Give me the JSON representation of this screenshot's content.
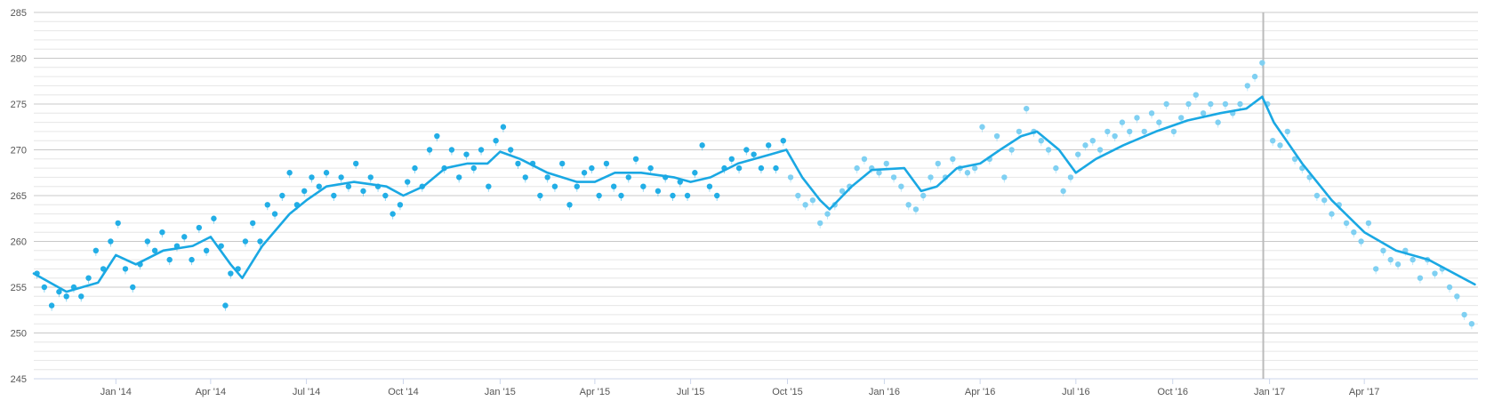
{
  "chart_data": {
    "type": "scatter",
    "title": "",
    "xlabel": "",
    "ylabel": "",
    "ylim": [
      245,
      285
    ],
    "xlim": [
      "2013-10-15",
      "2017-07-18"
    ],
    "yticks": [
      245,
      250,
      255,
      260,
      265,
      270,
      275,
      280,
      285
    ],
    "ytick_labels": [
      "245",
      "250",
      "255",
      "260",
      "265",
      "270",
      "275",
      "280",
      "285"
    ],
    "minor_grid_step": 1,
    "grid": true,
    "legend": "none",
    "xticks": [
      {
        "date": "2014-01-01",
        "label": "Jan '14"
      },
      {
        "date": "2014-04-01",
        "label": "Apr '14"
      },
      {
        "date": "2014-07-01",
        "label": "Jul '14"
      },
      {
        "date": "2014-10-01",
        "label": "Oct '14"
      },
      {
        "date": "2015-01-01",
        "label": "Jan '15"
      },
      {
        "date": "2015-04-01",
        "label": "Apr '15"
      },
      {
        "date": "2015-07-01",
        "label": "Jul '15"
      },
      {
        "date": "2015-10-01",
        "label": "Oct '15"
      },
      {
        "date": "2016-01-01",
        "label": "Jan '16"
      },
      {
        "date": "2016-04-01",
        "label": "Apr '16"
      },
      {
        "date": "2016-07-01",
        "label": "Jul '16"
      },
      {
        "date": "2016-10-01",
        "label": "Oct '16"
      },
      {
        "date": "2017-01-01",
        "label": "Jan '17"
      },
      {
        "date": "2017-04-01",
        "label": "Apr '17"
      }
    ],
    "vertical_marker": {
      "date": "2016-12-26",
      "color": "#bbbbbb"
    },
    "colors": {
      "dark_points": "#22aee6",
      "light_points": "#7fd0f2",
      "trend": "#1aa8e3"
    },
    "series": [
      {
        "type": "scatter",
        "points": [
          [
            "2013-10-18",
            256.5
          ],
          [
            "2013-10-25",
            255
          ],
          [
            "2013-11-01",
            253
          ],
          [
            "2013-11-08",
            254.5
          ],
          [
            "2013-11-15",
            254
          ],
          [
            "2013-11-22",
            255
          ],
          [
            "2013-11-29",
            254
          ],
          [
            "2013-12-06",
            256
          ],
          [
            "2013-12-13",
            259
          ],
          [
            "2013-12-20",
            257
          ],
          [
            "2013-12-27",
            260
          ],
          [
            "2014-01-03",
            262
          ],
          [
            "2014-01-10",
            257
          ],
          [
            "2014-01-17",
            255
          ],
          [
            "2014-01-24",
            257.5
          ],
          [
            "2014-01-31",
            260
          ],
          [
            "2014-02-07",
            259
          ],
          [
            "2014-02-14",
            261
          ],
          [
            "2014-02-21",
            258
          ],
          [
            "2014-02-28",
            259.5
          ],
          [
            "2014-03-07",
            260.5
          ],
          [
            "2014-03-14",
            258
          ],
          [
            "2014-03-21",
            261.5
          ],
          [
            "2014-03-28",
            259
          ],
          [
            "2014-04-04",
            262.5
          ],
          [
            "2014-04-11",
            259.5
          ],
          [
            "2014-04-15",
            253
          ],
          [
            "2014-04-20",
            256.5
          ],
          [
            "2014-04-27",
            257
          ],
          [
            "2014-05-04",
            260
          ],
          [
            "2014-05-11",
            262
          ],
          [
            "2014-05-18",
            260
          ],
          [
            "2014-05-25",
            264
          ],
          [
            "2014-06-01",
            263
          ],
          [
            "2014-06-08",
            265
          ],
          [
            "2014-06-15",
            267.5
          ],
          [
            "2014-06-22",
            264
          ],
          [
            "2014-06-29",
            265.5
          ],
          [
            "2014-07-06",
            267
          ],
          [
            "2014-07-13",
            266
          ],
          [
            "2014-07-20",
            267.5
          ],
          [
            "2014-07-27",
            265
          ],
          [
            "2014-08-03",
            267
          ],
          [
            "2014-08-10",
            266
          ],
          [
            "2014-08-17",
            268.5
          ],
          [
            "2014-08-24",
            265.5
          ],
          [
            "2014-08-31",
            267
          ],
          [
            "2014-09-07",
            266
          ],
          [
            "2014-09-14",
            265
          ],
          [
            "2014-09-21",
            263
          ],
          [
            "2014-09-28",
            264
          ],
          [
            "2014-10-05",
            266.5
          ],
          [
            "2014-10-12",
            268
          ],
          [
            "2014-10-19",
            266
          ],
          [
            "2014-10-26",
            270
          ],
          [
            "2014-11-02",
            271.5
          ],
          [
            "2014-11-09",
            268
          ],
          [
            "2014-11-16",
            270
          ],
          [
            "2014-11-23",
            267
          ],
          [
            "2014-11-30",
            269.5
          ],
          [
            "2014-12-07",
            268
          ],
          [
            "2014-12-14",
            270
          ],
          [
            "2014-12-21",
            266
          ],
          [
            "2014-12-28",
            271
          ],
          [
            "2015-01-04",
            272.5
          ],
          [
            "2015-01-11",
            270
          ],
          [
            "2015-01-18",
            268.5
          ],
          [
            "2015-01-25",
            267
          ],
          [
            "2015-02-01",
            268.5
          ],
          [
            "2015-02-08",
            265
          ],
          [
            "2015-02-15",
            267
          ],
          [
            "2015-02-22",
            266
          ],
          [
            "2015-03-01",
            268.5
          ],
          [
            "2015-03-08",
            264
          ],
          [
            "2015-03-15",
            266
          ],
          [
            "2015-03-22",
            267.5
          ],
          [
            "2015-03-29",
            268
          ],
          [
            "2015-04-05",
            265
          ],
          [
            "2015-04-12",
            268.5
          ],
          [
            "2015-04-19",
            266
          ],
          [
            "2015-04-26",
            265
          ],
          [
            "2015-05-03",
            267
          ],
          [
            "2015-05-10",
            269
          ],
          [
            "2015-05-17",
            266
          ],
          [
            "2015-05-24",
            268
          ],
          [
            "2015-05-31",
            265.5
          ],
          [
            "2015-06-07",
            267
          ],
          [
            "2015-06-14",
            265
          ],
          [
            "2015-06-21",
            266.5
          ],
          [
            "2015-06-28",
            265
          ],
          [
            "2015-07-05",
            267.5
          ],
          [
            "2015-07-12",
            270.5
          ],
          [
            "2015-07-19",
            266
          ],
          [
            "2015-07-26",
            265
          ],
          [
            "2015-08-02",
            268
          ],
          [
            "2015-08-09",
            269
          ],
          [
            "2015-08-16",
            268
          ],
          [
            "2015-08-23",
            270
          ],
          [
            "2015-08-30",
            269.5
          ],
          [
            "2015-09-06",
            268
          ],
          [
            "2015-09-13",
            270.5
          ],
          [
            "2015-09-20",
            268
          ],
          [
            "2015-09-27",
            271
          ]
        ]
      },
      {
        "type": "scatter",
        "points": [
          [
            "2015-10-04",
            267
          ],
          [
            "2015-10-11",
            265
          ],
          [
            "2015-10-18",
            264
          ],
          [
            "2015-10-25",
            264.5
          ],
          [
            "2015-11-01",
            262
          ],
          [
            "2015-11-08",
            263
          ],
          [
            "2015-11-15",
            264
          ],
          [
            "2015-11-22",
            265.5
          ],
          [
            "2015-11-29",
            266
          ],
          [
            "2015-12-06",
            268
          ],
          [
            "2015-12-13",
            269
          ],
          [
            "2015-12-20",
            268
          ],
          [
            "2015-12-27",
            267.5
          ],
          [
            "2016-01-03",
            268.5
          ],
          [
            "2016-01-10",
            267
          ],
          [
            "2016-01-17",
            266
          ],
          [
            "2016-01-24",
            264
          ],
          [
            "2016-01-31",
            263.5
          ],
          [
            "2016-02-07",
            265
          ],
          [
            "2016-02-14",
            267
          ],
          [
            "2016-02-21",
            268.5
          ],
          [
            "2016-02-28",
            267
          ],
          [
            "2016-03-06",
            269
          ],
          [
            "2016-03-13",
            268
          ],
          [
            "2016-03-20",
            267.5
          ],
          [
            "2016-03-27",
            268
          ],
          [
            "2016-04-03",
            272.5
          ],
          [
            "2016-04-10",
            269
          ],
          [
            "2016-04-17",
            271.5
          ],
          [
            "2016-04-24",
            267
          ],
          [
            "2016-05-01",
            270
          ],
          [
            "2016-05-08",
            272
          ],
          [
            "2016-05-15",
            274.5
          ],
          [
            "2016-05-22",
            272
          ],
          [
            "2016-05-29",
            271
          ],
          [
            "2016-06-05",
            270
          ],
          [
            "2016-06-12",
            268
          ],
          [
            "2016-06-19",
            265.5
          ],
          [
            "2016-06-26",
            267
          ],
          [
            "2016-07-03",
            269.5
          ],
          [
            "2016-07-10",
            270.5
          ],
          [
            "2016-07-17",
            271
          ],
          [
            "2016-07-24",
            270
          ],
          [
            "2016-07-31",
            272
          ],
          [
            "2016-08-07",
            271.5
          ],
          [
            "2016-08-14",
            273
          ],
          [
            "2016-08-21",
            272
          ],
          [
            "2016-08-28",
            273.5
          ],
          [
            "2016-09-04",
            272
          ],
          [
            "2016-09-11",
            274
          ],
          [
            "2016-09-18",
            273
          ],
          [
            "2016-09-25",
            275
          ],
          [
            "2016-10-02",
            272
          ],
          [
            "2016-10-09",
            273.5
          ],
          [
            "2016-10-16",
            275
          ],
          [
            "2016-10-23",
            276
          ],
          [
            "2016-10-30",
            274
          ],
          [
            "2016-11-06",
            275
          ],
          [
            "2016-11-13",
            273
          ],
          [
            "2016-11-20",
            275
          ],
          [
            "2016-11-27",
            274
          ],
          [
            "2016-12-04",
            275
          ],
          [
            "2016-12-11",
            277
          ],
          [
            "2016-12-18",
            278
          ],
          [
            "2016-12-25",
            279.5
          ],
          [
            "2016-12-30",
            275
          ],
          [
            "2017-01-04",
            271
          ],
          [
            "2017-01-11",
            270.5
          ],
          [
            "2017-01-18",
            272
          ],
          [
            "2017-01-25",
            269
          ],
          [
            "2017-02-01",
            268
          ],
          [
            "2017-02-08",
            267
          ],
          [
            "2017-02-15",
            265
          ],
          [
            "2017-02-22",
            264.5
          ],
          [
            "2017-03-01",
            263
          ],
          [
            "2017-03-08",
            264
          ],
          [
            "2017-03-15",
            262
          ],
          [
            "2017-03-22",
            261
          ],
          [
            "2017-03-29",
            260
          ],
          [
            "2017-04-05",
            262
          ],
          [
            "2017-04-12",
            257
          ],
          [
            "2017-04-19",
            259
          ],
          [
            "2017-04-26",
            258
          ],
          [
            "2017-05-03",
            257.5
          ],
          [
            "2017-05-10",
            259
          ],
          [
            "2017-05-17",
            258
          ],
          [
            "2017-05-24",
            256
          ],
          [
            "2017-05-31",
            258
          ],
          [
            "2017-06-07",
            256.5
          ],
          [
            "2017-06-14",
            257
          ],
          [
            "2017-06-21",
            255
          ],
          [
            "2017-06-28",
            254
          ],
          [
            "2017-07-05",
            252
          ],
          [
            "2017-07-12",
            251
          ]
        ]
      },
      {
        "type": "line",
        "points": [
          [
            "2013-10-15",
            256.5
          ],
          [
            "2013-11-15",
            254.5
          ],
          [
            "2013-12-15",
            255.5
          ],
          [
            "2014-01-01",
            258.5
          ],
          [
            "2014-01-20",
            257.5
          ],
          [
            "2014-02-15",
            259
          ],
          [
            "2014-03-15",
            259.5
          ],
          [
            "2014-04-01",
            260.5
          ],
          [
            "2014-04-20",
            257.5
          ],
          [
            "2014-05-01",
            256
          ],
          [
            "2014-05-20",
            259.5
          ],
          [
            "2014-06-15",
            263
          ],
          [
            "2014-07-01",
            264.5
          ],
          [
            "2014-07-20",
            266
          ],
          [
            "2014-08-15",
            266.5
          ],
          [
            "2014-09-15",
            266
          ],
          [
            "2014-10-01",
            265
          ],
          [
            "2014-10-20",
            266
          ],
          [
            "2014-11-10",
            268
          ],
          [
            "2014-12-01",
            268.5
          ],
          [
            "2014-12-20",
            268.5
          ],
          [
            "2015-01-01",
            269.8
          ],
          [
            "2015-01-20",
            269
          ],
          [
            "2015-02-15",
            267.5
          ],
          [
            "2015-03-15",
            266.5
          ],
          [
            "2015-04-01",
            266.5
          ],
          [
            "2015-04-20",
            267.5
          ],
          [
            "2015-05-15",
            267.5
          ],
          [
            "2015-06-15",
            267
          ],
          [
            "2015-07-01",
            266.5
          ],
          [
            "2015-07-20",
            267
          ],
          [
            "2015-08-15",
            268.5
          ],
          [
            "2015-09-15",
            269.5
          ],
          [
            "2015-09-30",
            270
          ],
          [
            "2015-10-15",
            267
          ],
          [
            "2015-11-01",
            264.5
          ],
          [
            "2015-11-10",
            263.5
          ],
          [
            "2015-12-01",
            266
          ],
          [
            "2015-12-20",
            267.8
          ],
          [
            "2016-01-20",
            268
          ],
          [
            "2016-02-05",
            265.5
          ],
          [
            "2016-02-20",
            266
          ],
          [
            "2016-03-10",
            268
          ],
          [
            "2016-04-01",
            268.5
          ],
          [
            "2016-04-20",
            270
          ],
          [
            "2016-05-10",
            271.5
          ],
          [
            "2016-05-25",
            272
          ],
          [
            "2016-06-15",
            270
          ],
          [
            "2016-07-01",
            267.5
          ],
          [
            "2016-07-20",
            269
          ],
          [
            "2016-08-15",
            270.5
          ],
          [
            "2016-09-15",
            272
          ],
          [
            "2016-10-15",
            273.2
          ],
          [
            "2016-11-15",
            274
          ],
          [
            "2016-12-10",
            274.5
          ],
          [
            "2016-12-25",
            275.8
          ],
          [
            "2017-01-05",
            273
          ],
          [
            "2017-02-01",
            268.5
          ],
          [
            "2017-03-01",
            264.5
          ],
          [
            "2017-04-01",
            261
          ],
          [
            "2017-05-01",
            259
          ],
          [
            "2017-06-01",
            258
          ],
          [
            "2017-07-15",
            255.3
          ]
        ]
      }
    ]
  }
}
